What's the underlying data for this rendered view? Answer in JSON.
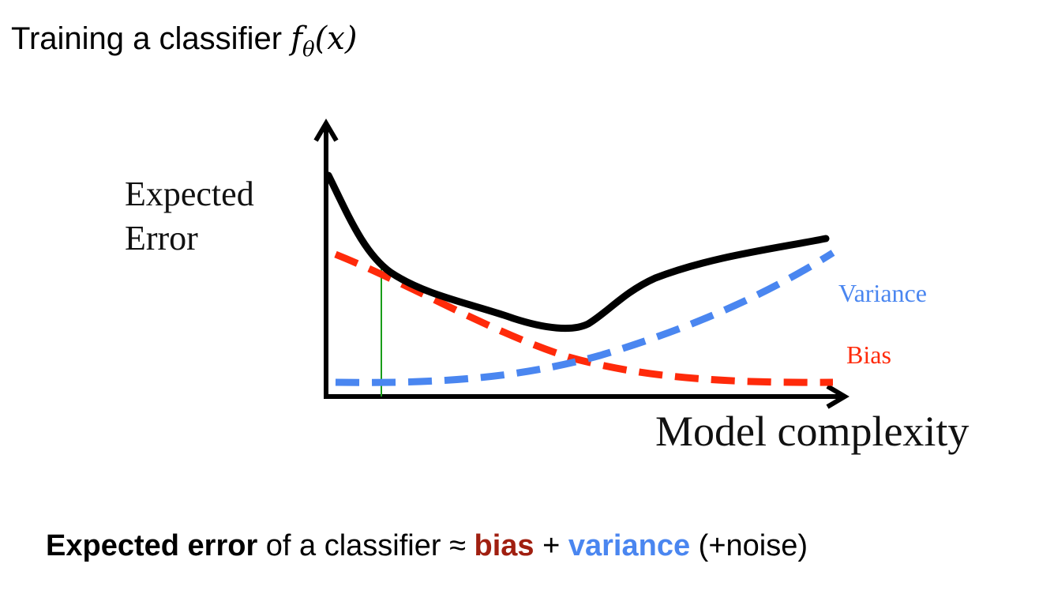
{
  "title": {
    "text": "Training a classifier ",
    "math_main": "f",
    "math_sub": "θ",
    "math_arg": "(x)"
  },
  "diagram": {
    "y_label_line1": "Expected",
    "y_label_line2": "Error",
    "x_label": "Model complexity",
    "variance_label": "Variance",
    "bias_label": "Bias",
    "colors": {
      "total": "#000000",
      "bias": "#ff2a0a",
      "variance": "#4a86f0",
      "marker": "#1a9e1a"
    }
  },
  "caption": {
    "strong": "Expected error",
    "mid": " of a classifier ≈ ",
    "bias": "bias",
    "plus": " + ",
    "variance": "variance",
    "tail": " (+noise)",
    "bias_color": "#a01f10",
    "variance_color": "#4a86f0"
  }
}
